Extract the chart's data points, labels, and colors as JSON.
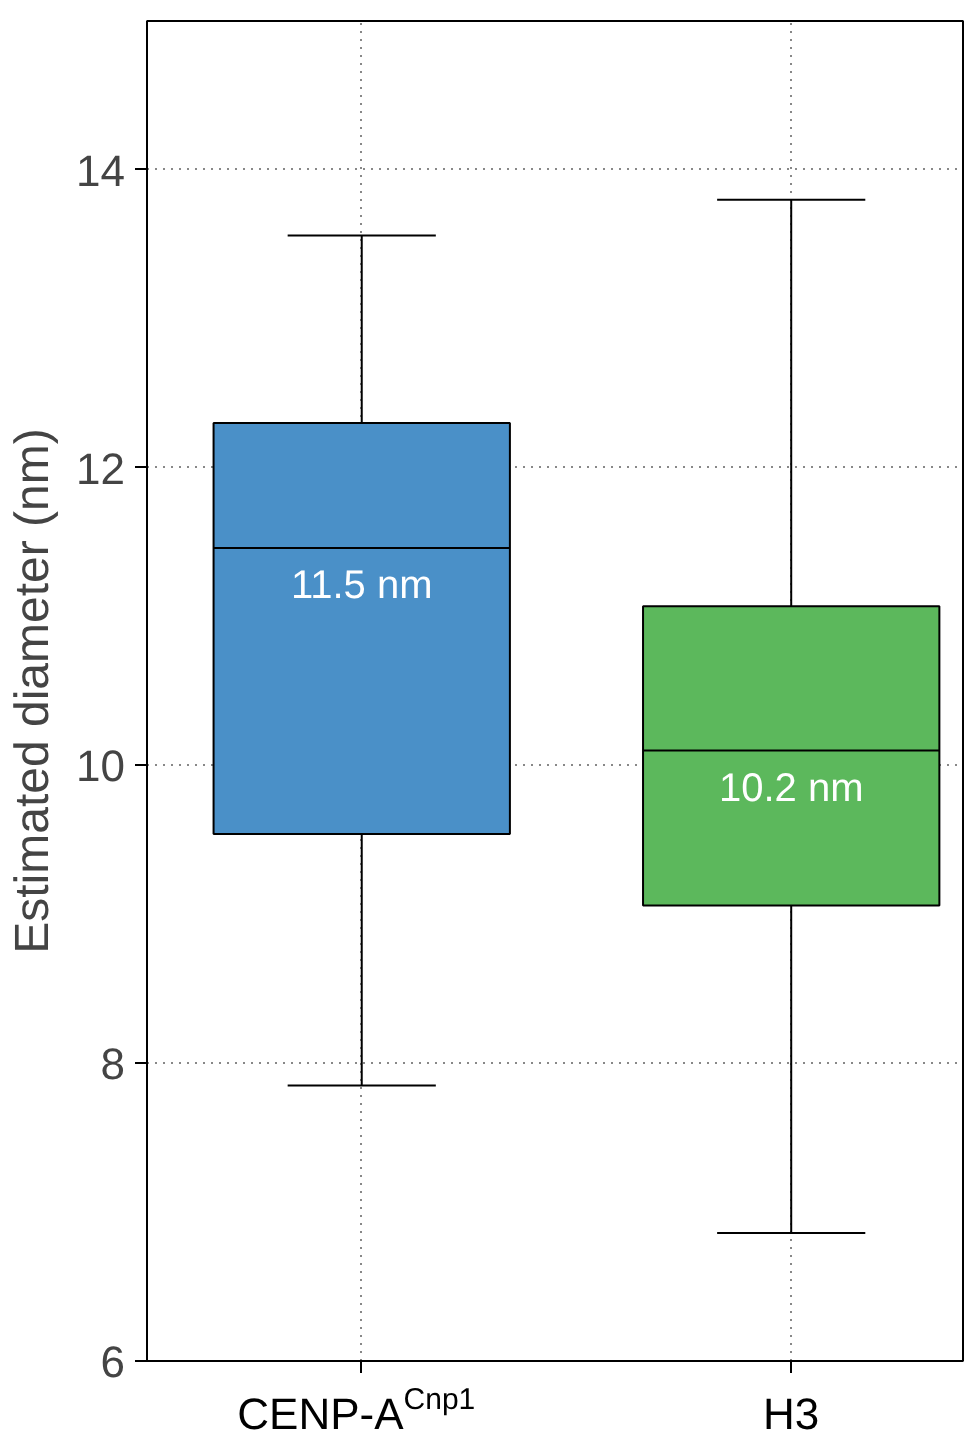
{
  "chart_data": {
    "type": "box",
    "ylabel": "Estimated diameter (nm)",
    "categories": [
      "CENP-A$^{Cnp1}$",
      "H3"
    ],
    "colors": [
      "#4a90c8",
      "#5cb85c"
    ],
    "boxes": [
      {
        "low": 7.85,
        "q1": 9.54,
        "median": 11.46,
        "q3": 12.3,
        "high": 13.56
      },
      {
        "low": 6.86,
        "q1": 9.06,
        "median": 10.1,
        "q3": 11.07,
        "high": 13.8
      }
    ],
    "annotations": [
      {
        "text": "11.5 nm",
        "x": "CENP-A$^{Cnp1}$",
        "y": 11.46
      },
      {
        "text": "10.2 nm",
        "x": "H3",
        "y": 10.1
      }
    ],
    "ylim": [
      6,
      15
    ],
    "yticks": [
      6,
      8,
      10,
      12,
      14
    ],
    "grid": true
  }
}
